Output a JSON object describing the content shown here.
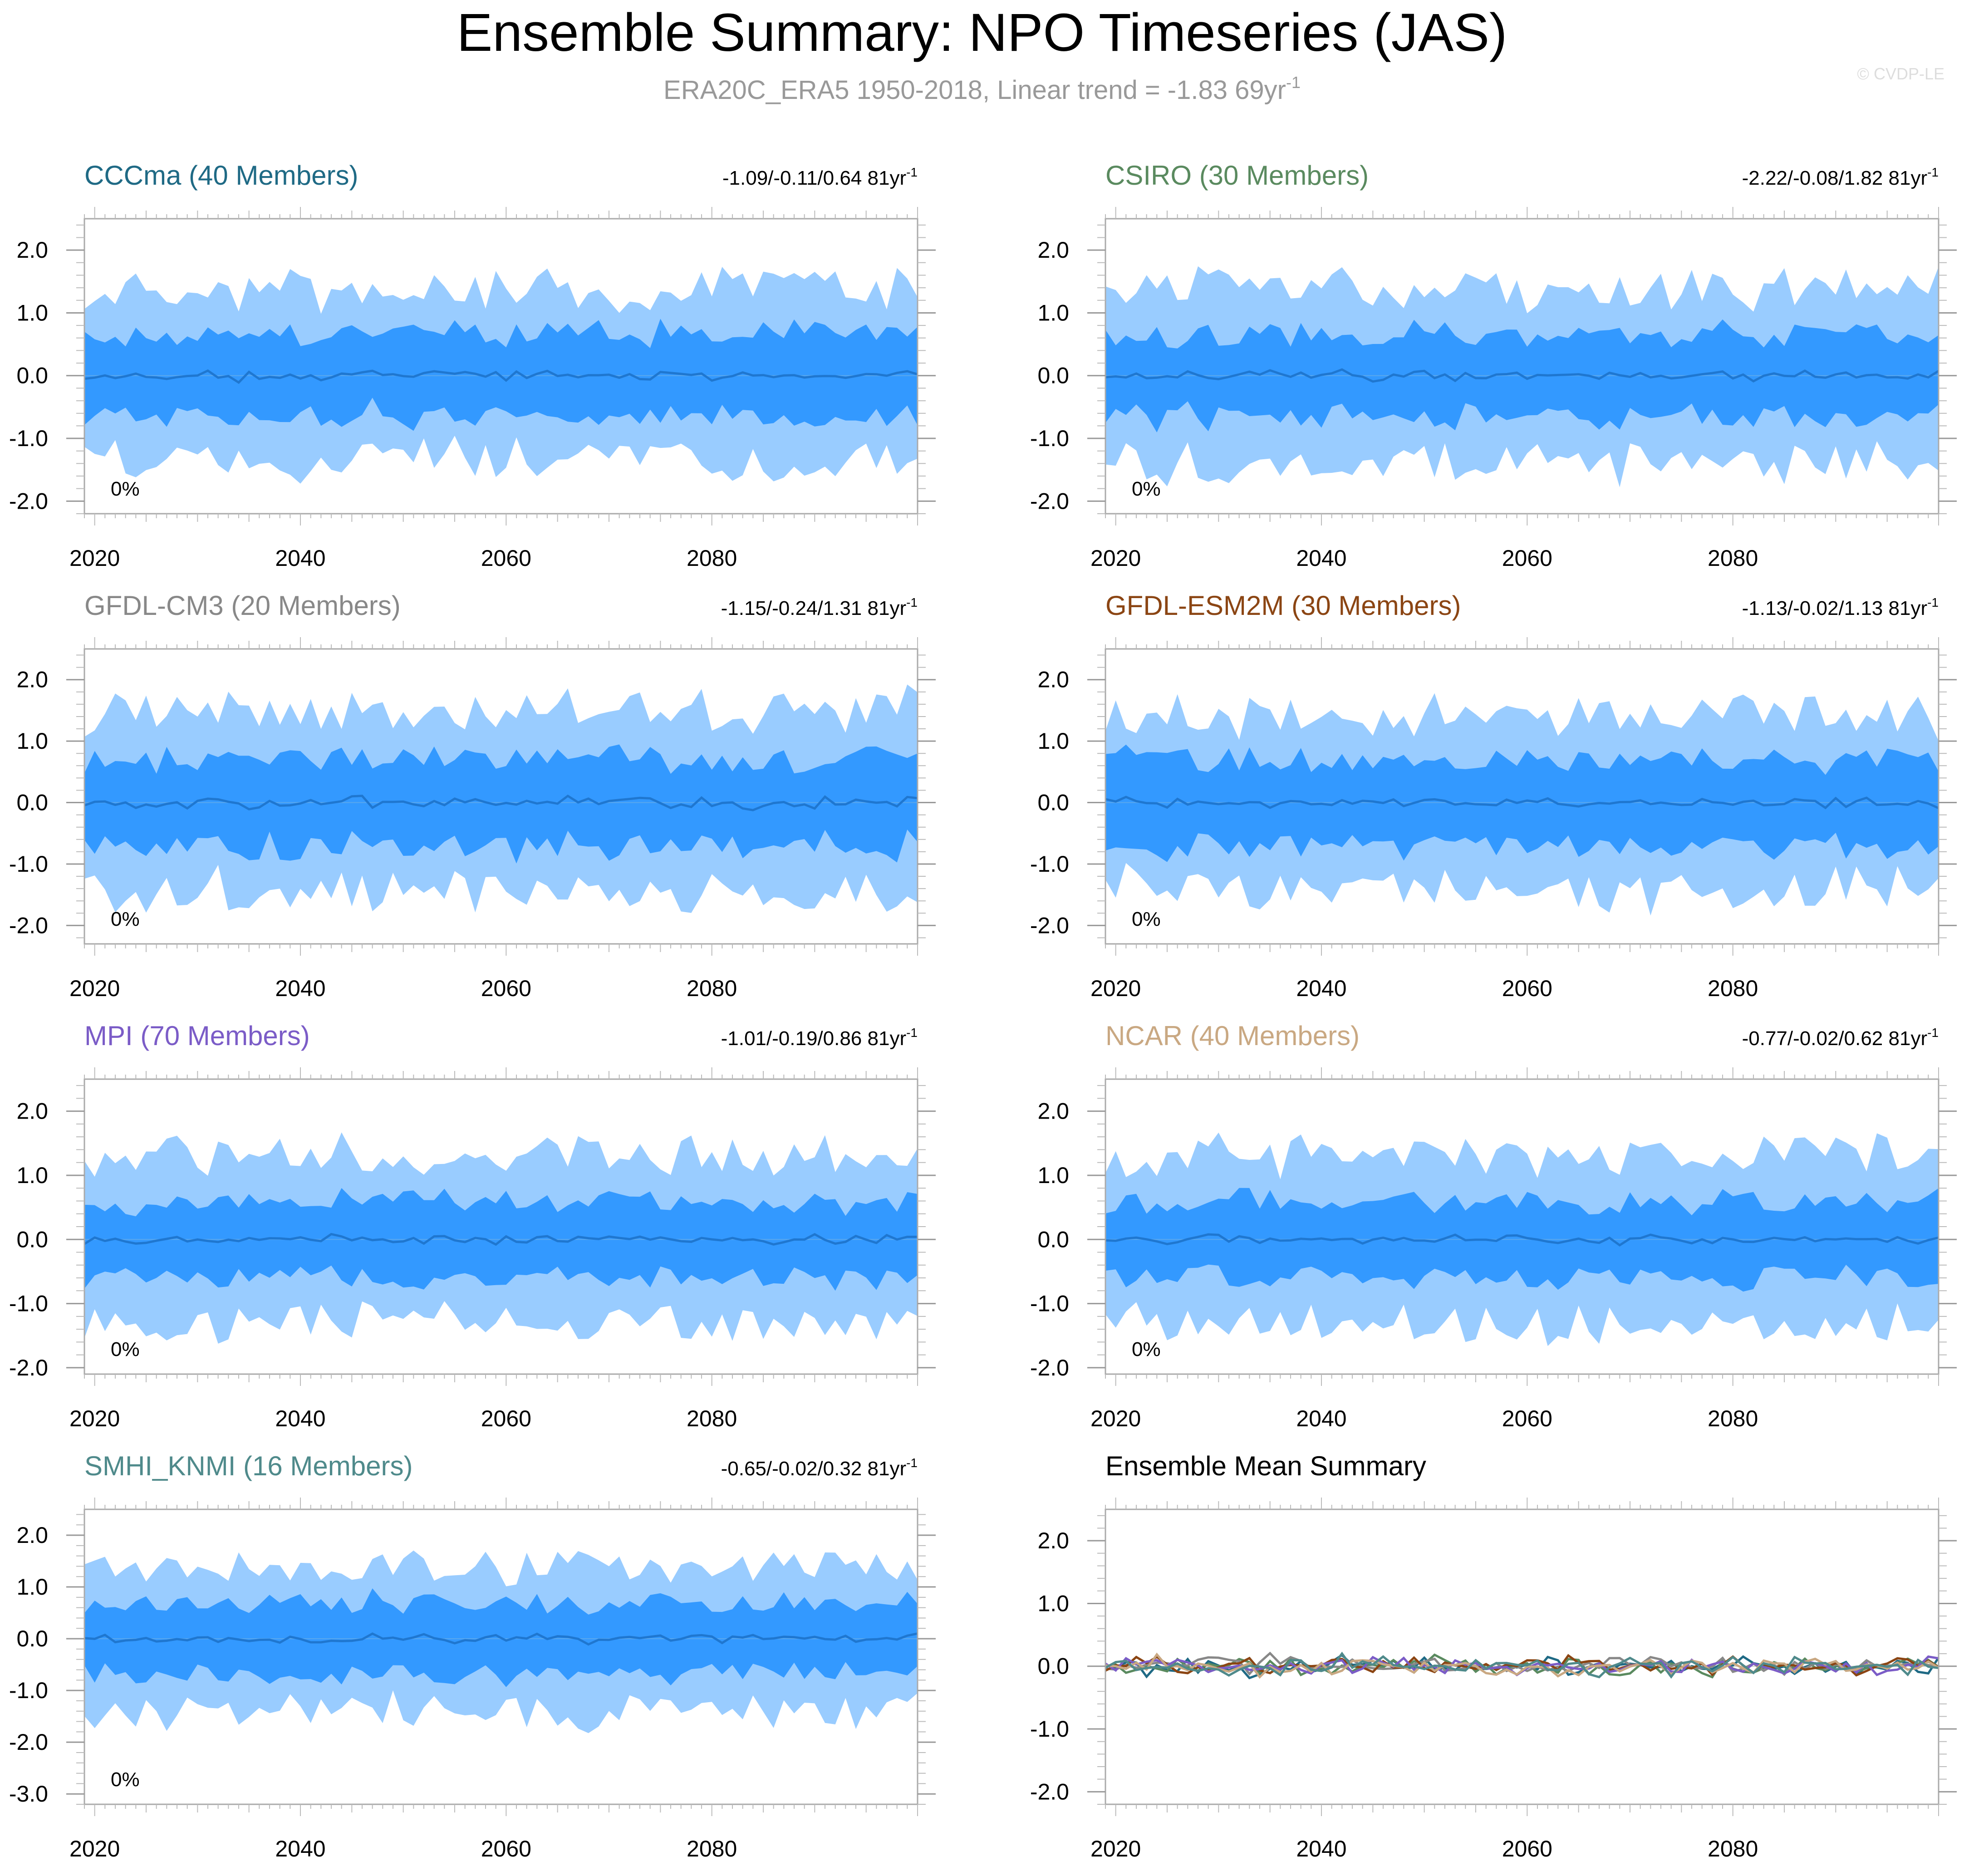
{
  "page": {
    "title": "Ensemble Summary: NPO Timeseries (JAS)",
    "subtitle": "ERA20C_ERA5 1950-2018, Linear trend = -1.83 69yr",
    "subtitle_sup": "-1",
    "copyright": "© CVDP-LE"
  },
  "colors": {
    "outer_band": "#99ccff",
    "inner_band": "#3399ff",
    "mean_line": "#1f77d0",
    "frame": "#aaaaaa"
  },
  "chart_data": [
    {
      "type": "area",
      "title": "CCCma (40 Members)",
      "title_color": "#1f6a85",
      "trend": "-1.09/-0.11/0.64 81yr",
      "trend_sup": "-1",
      "percent": "0%",
      "xlim": [
        2019,
        2100
      ],
      "ylim": [
        -2.2,
        2.5
      ],
      "yticks": [
        2.0,
        1.0,
        0.0,
        -1.0,
        -2.0
      ],
      "ytick_labels": [
        "2.0",
        "1.0",
        "0.0",
        "-1.0",
        "-2.0"
      ],
      "xticks": [
        2020,
        2040,
        2060,
        2080
      ],
      "xtick_labels": [
        "2020",
        "2040",
        "2060",
        "2080"
      ],
      "seed": 11,
      "ranges": {
        "outer": 1.35,
        "inner": 0.68,
        "mean": 0.12
      }
    },
    {
      "type": "area",
      "title": "CSIRO (30 Members)",
      "title_color": "#5a8a5f",
      "trend": "-2.22/-0.08/1.82 81yr",
      "trend_sup": "-1",
      "percent": "0%",
      "xlim": [
        2019,
        2100
      ],
      "ylim": [
        -2.2,
        2.5
      ],
      "yticks": [
        2.0,
        1.0,
        0.0,
        -1.0,
        -2.0
      ],
      "ytick_labels": [
        "2.0",
        "1.0",
        "0.0",
        "-1.0",
        "-2.0"
      ],
      "xticks": [
        2020,
        2040,
        2060,
        2080
      ],
      "xtick_labels": [
        "2020",
        "2040",
        "2060",
        "2080"
      ],
      "seed": 23,
      "ranges": {
        "outer": 1.4,
        "inner": 0.68,
        "mean": 0.12
      }
    },
    {
      "type": "area",
      "title": "GFDL-CM3 (20 Members)",
      "title_color": "#888888",
      "trend": "-1.15/-0.24/1.31 81yr",
      "trend_sup": "-1",
      "percent": "0%",
      "xlim": [
        2019,
        2100
      ],
      "ylim": [
        -2.3,
        2.5
      ],
      "yticks": [
        2.0,
        1.0,
        0.0,
        -1.0,
        -2.0
      ],
      "ytick_labels": [
        "2.0",
        "1.0",
        "0.0",
        "-1.0",
        "-2.0"
      ],
      "xticks": [
        2020,
        2040,
        2060,
        2080
      ],
      "xtick_labels": [
        "2020",
        "2040",
        "2060",
        "2080"
      ],
      "seed": 37,
      "ranges": {
        "outer": 1.45,
        "inner": 0.75,
        "mean": 0.15
      }
    },
    {
      "type": "area",
      "title": "GFDL-ESM2M (30 Members)",
      "title_color": "#8b4513",
      "trend": "-1.13/-0.02/1.13 81yr",
      "trend_sup": "-1",
      "percent": "0%",
      "xlim": [
        2019,
        2100
      ],
      "ylim": [
        -2.3,
        2.5
      ],
      "yticks": [
        2.0,
        1.0,
        0.0,
        -1.0,
        -2.0
      ],
      "ytick_labels": [
        "2.0",
        "1.0",
        "0.0",
        "-1.0",
        "-2.0"
      ],
      "xticks": [
        2020,
        2040,
        2060,
        2080
      ],
      "xtick_labels": [
        "2020",
        "2040",
        "2060",
        "2080"
      ],
      "seed": 41,
      "ranges": {
        "outer": 1.4,
        "inner": 0.72,
        "mean": 0.13
      }
    },
    {
      "type": "area",
      "title": "MPI (70 Members)",
      "title_color": "#7b5cc7",
      "trend": "-1.01/-0.19/0.86 81yr",
      "trend_sup": "-1",
      "percent": "0%",
      "xlim": [
        2019,
        2100
      ],
      "ylim": [
        -2.1,
        2.5
      ],
      "yticks": [
        2.0,
        1.0,
        0.0,
        -1.0,
        -2.0
      ],
      "ytick_labels": [
        "2.0",
        "1.0",
        "0.0",
        "-1.0",
        "-2.0"
      ],
      "xticks": [
        2020,
        2040,
        2060,
        2080
      ],
      "xtick_labels": [
        "2020",
        "2040",
        "2060",
        "2080"
      ],
      "seed": 53,
      "ranges": {
        "outer": 1.3,
        "inner": 0.6,
        "mean": 0.1
      }
    },
    {
      "type": "area",
      "title": "NCAR (40 Members)",
      "title_color": "#c9a882",
      "trend": "-0.77/-0.02/0.62 81yr",
      "trend_sup": "-1",
      "percent": "0%",
      "xlim": [
        2019,
        2100
      ],
      "ylim": [
        -2.1,
        2.5
      ],
      "yticks": [
        2.0,
        1.0,
        0.0,
        -1.0,
        -2.0
      ],
      "ytick_labels": [
        "2.0",
        "1.0",
        "0.0",
        "-1.0",
        "-2.0"
      ],
      "xticks": [
        2020,
        2040,
        2060,
        2080
      ],
      "xtick_labels": [
        "2020",
        "2040",
        "2060",
        "2080"
      ],
      "seed": 67,
      "ranges": {
        "outer": 1.3,
        "inner": 0.62,
        "mean": 0.11
      }
    },
    {
      "type": "area",
      "title": "SMHI_KNMI (16 Members)",
      "title_color": "#4f8a8b",
      "trend": "-0.65/-0.02/0.32 81yr",
      "trend_sup": "-1",
      "percent": "0%",
      "xlim": [
        2019,
        2100
      ],
      "ylim": [
        -3.2,
        2.5
      ],
      "yticks": [
        2.0,
        1.0,
        0.0,
        -1.0,
        -2.0,
        -3.0
      ],
      "ytick_labels": [
        "2.0",
        "1.0",
        "0.0",
        "-1.0",
        "-2.0",
        "-3.0"
      ],
      "xticks": [
        2020,
        2040,
        2060,
        2080
      ],
      "xtick_labels": [
        "2020",
        "2040",
        "2060",
        "2080"
      ],
      "seed": 79,
      "ranges": {
        "outer": 1.4,
        "inner": 0.7,
        "mean": 0.14
      }
    },
    {
      "type": "line",
      "title": "Ensemble Mean Summary",
      "title_color": "#000000",
      "xlim": [
        2019,
        2100
      ],
      "ylim": [
        -2.2,
        2.5
      ],
      "yticks": [
        2.0,
        1.0,
        0.0,
        -1.0,
        -2.0
      ],
      "ytick_labels": [
        "2.0",
        "1.0",
        "0.0",
        "-1.0",
        "-2.0"
      ],
      "xticks": [
        2020,
        2040,
        2060,
        2080
      ],
      "xtick_labels": [
        "2020",
        "2040",
        "2060",
        "2080"
      ],
      "series": [
        {
          "name": "CCCma",
          "color": "#1f6a85",
          "seed": 101
        },
        {
          "name": "CSIRO",
          "color": "#5a8a5f",
          "seed": 102
        },
        {
          "name": "GFDL-CM3",
          "color": "#888888",
          "seed": 103
        },
        {
          "name": "GFDL-ESM2M",
          "color": "#8b4513",
          "seed": 104
        },
        {
          "name": "MPI",
          "color": "#7b5cc7",
          "seed": 105
        },
        {
          "name": "NCAR",
          "color": "#c9a882",
          "seed": 106
        },
        {
          "name": "SMHI_KNMI",
          "color": "#4f8a8b",
          "seed": 107
        }
      ],
      "series_amplitude": 0.22
    }
  ]
}
